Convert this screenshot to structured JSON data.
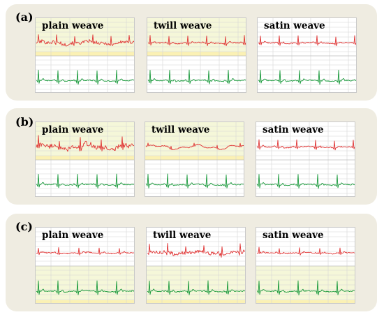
{
  "figure": {
    "colors": {
      "group_background": "#efece1",
      "top_trace": "#e03333",
      "bottom_trace": "#1a9a3c",
      "plain_top_zone": "#f5f7d9",
      "zone_stripe": "#fbf1b4",
      "grid": "#d6d6d6",
      "white_zone": "#ffffff"
    },
    "groups": [
      {
        "label": "(a)",
        "panels": [
          {
            "title": "plain weave",
            "top_trace": "noisy",
            "top_zone": "yellow",
            "bottom_zone": "white"
          },
          {
            "title": "twill weave",
            "top_trace": "ecg",
            "top_zone": "yellow",
            "bottom_zone": "white"
          },
          {
            "title": "satin weave",
            "top_trace": "ecg",
            "top_zone": "white",
            "bottom_zone": "white"
          }
        ]
      },
      {
        "label": "(b)",
        "panels": [
          {
            "title": "plain weave",
            "top_trace": "very-noisy",
            "top_zone": "yellow",
            "bottom_zone": "white"
          },
          {
            "title": "twill weave",
            "top_trace": "wavy",
            "top_zone": "yellow",
            "bottom_zone": "white"
          },
          {
            "title": "satin weave",
            "top_trace": "ecg",
            "top_zone": "white",
            "bottom_zone": "white"
          }
        ]
      },
      {
        "label": "(c)",
        "panels": [
          {
            "title": "plain weave",
            "top_trace": "small-ecg",
            "top_zone": "white",
            "bottom_zone": "yellow"
          },
          {
            "title": "twill weave",
            "top_trace": "noisy",
            "top_zone": "white",
            "bottom_zone": "yellow"
          },
          {
            "title": "satin weave",
            "top_trace": "small-ecg",
            "top_zone": "white",
            "bottom_zone": "yellow"
          }
        ]
      }
    ]
  }
}
